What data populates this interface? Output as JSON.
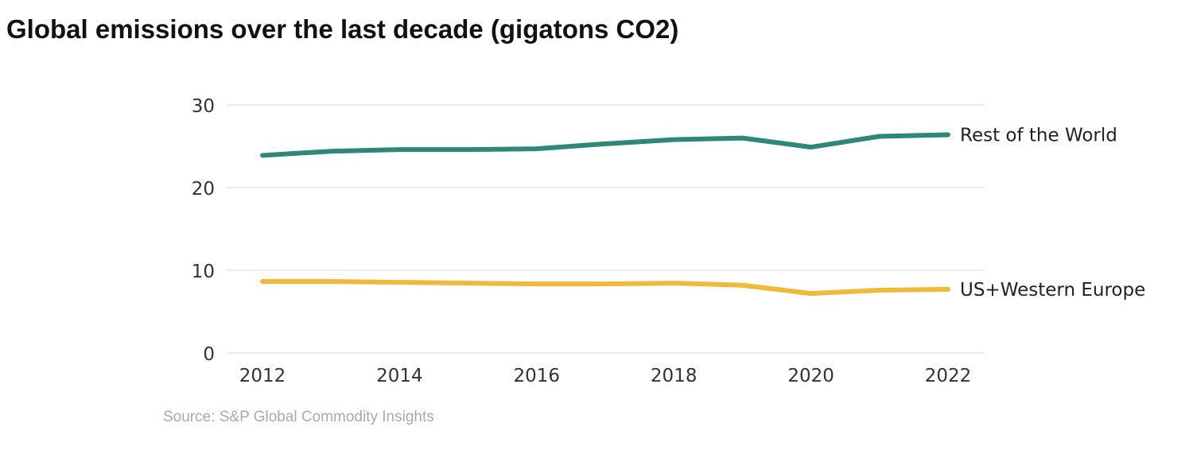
{
  "chart_data": {
    "type": "line",
    "title": "Global emissions over the last decade (gigatons CO2)",
    "x": [
      2012,
      2013,
      2014,
      2015,
      2016,
      2017,
      2018,
      2019,
      2020,
      2021,
      2022
    ],
    "xticks": [
      "2012",
      "2014",
      "2016",
      "2018",
      "2020",
      "2022"
    ],
    "yticks": [
      "0",
      "10",
      "20",
      "30"
    ],
    "ylim": [
      0,
      30
    ],
    "grid": "horizontal",
    "legend": "end-of-line labels",
    "series": [
      {
        "name": "Rest of the World",
        "color": "#2e8777",
        "values": [
          23.9,
          24.4,
          24.6,
          24.6,
          24.7,
          25.3,
          25.8,
          26.0,
          24.9,
          26.2,
          26.4
        ]
      },
      {
        "name": "US+Western Europe",
        "color": "#f0b93a",
        "values": [
          8.65,
          8.65,
          8.55,
          8.45,
          8.35,
          8.35,
          8.45,
          8.2,
          7.2,
          7.6,
          7.7
        ]
      }
    ],
    "source": "Source: S&P Global Commodity Insights"
  }
}
